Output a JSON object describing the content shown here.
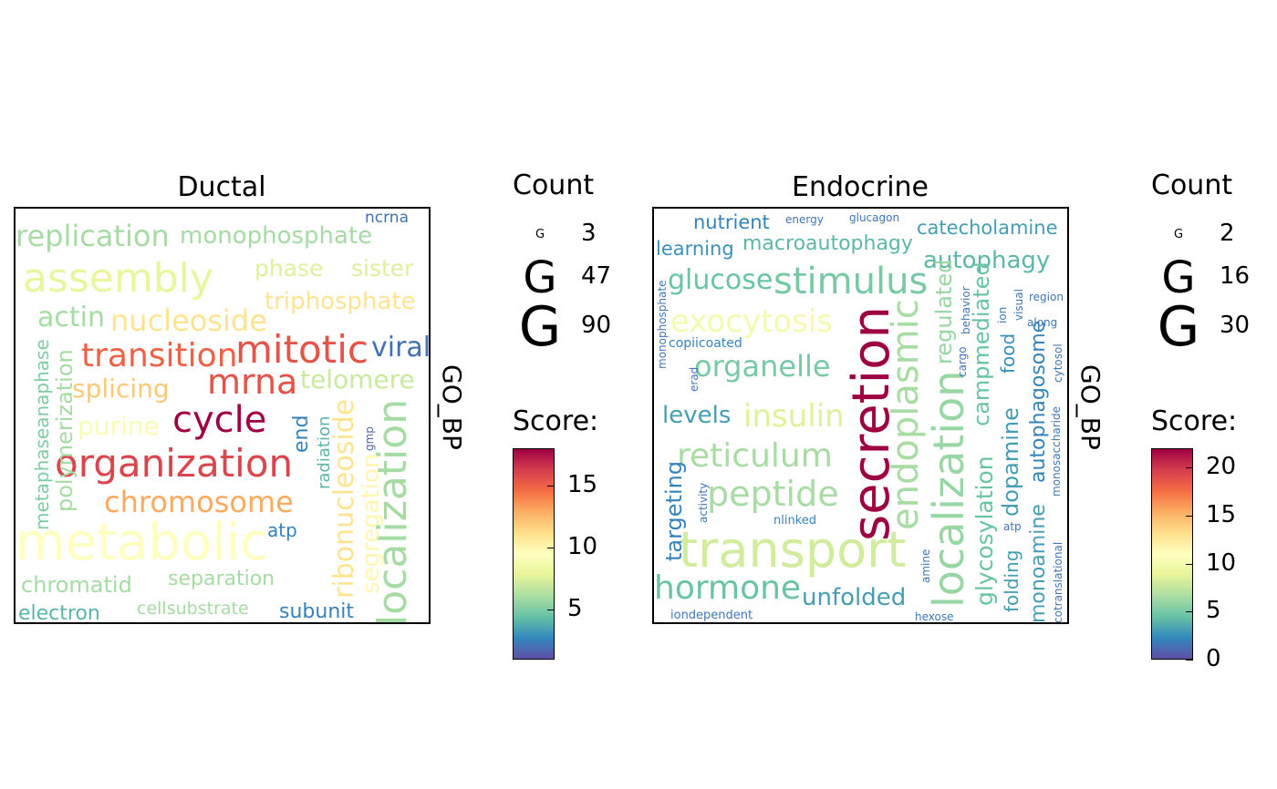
{
  "colors": {
    "palette": "Spectral",
    "stops": [
      "#5e4fa2",
      "#3288bd",
      "#66c2a5",
      "#abdda4",
      "#e6f598",
      "#ffffbf",
      "#fee08b",
      "#fdae61",
      "#f46d43",
      "#d53e4f",
      "#9e0142"
    ]
  },
  "panels": [
    {
      "title": "Ductal",
      "side_label": "GO_BP",
      "count_legend": {
        "title": "Count",
        "glyph": "G",
        "values": [
          3,
          47,
          90
        ]
      },
      "score_legend": {
        "title": "Score:",
        "ticks": [
          5,
          10,
          15
        ],
        "range": [
          1,
          18
        ]
      }
    },
    {
      "title": "Endocrine",
      "side_label": "GO_BP",
      "count_legend": {
        "title": "Count",
        "glyph": "G",
        "values": [
          2,
          16,
          30
        ]
      },
      "score_legend": {
        "title": "Score:",
        "ticks": [
          0,
          5,
          10,
          15,
          20
        ],
        "range": [
          0,
          22
        ]
      }
    }
  ],
  "chart_data": [
    {
      "type": "wordcloud",
      "title": "Ductal",
      "facet_label": "GO_BP",
      "size_legend": {
        "title": "Count",
        "values": [
          3,
          47,
          90
        ]
      },
      "color_legend": {
        "title": "Score:",
        "ticks": [
          5,
          10,
          15
        ],
        "range": [
          1,
          18
        ]
      },
      "words": [
        {
          "word": "metabolic",
          "count": 90,
          "score": 9.5
        },
        {
          "word": "organization",
          "count": 60,
          "score": 16
        },
        {
          "word": "cycle",
          "count": 55,
          "score": 18
        },
        {
          "word": "mitotic",
          "count": 55,
          "score": 15.5
        },
        {
          "word": "assembly",
          "count": 52,
          "score": 8
        },
        {
          "word": "mrna",
          "count": 48,
          "score": 15.5
        },
        {
          "word": "localization",
          "count": 45,
          "score": 6
        },
        {
          "word": "transition",
          "count": 42,
          "score": 15
        },
        {
          "word": "chromosome",
          "count": 40,
          "score": 13
        },
        {
          "word": "replication",
          "count": 36,
          "score": 6
        },
        {
          "word": "nucleoside",
          "count": 35,
          "score": 11
        },
        {
          "word": "viral",
          "count": 33,
          "score": 2
        },
        {
          "word": "ribonucleoside",
          "count": 30,
          "score": 11
        },
        {
          "word": "segregation",
          "count": 28,
          "score": 10
        },
        {
          "word": "monophosphate",
          "count": 30,
          "score": 6
        },
        {
          "word": "actin",
          "count": 30,
          "score": 6
        },
        {
          "word": "telomere",
          "count": 30,
          "score": 7
        },
        {
          "word": "splicing",
          "count": 28,
          "score": 12
        },
        {
          "word": "purine",
          "count": 28,
          "score": 9
        },
        {
          "word": "triphosphate",
          "count": 28,
          "score": 11
        },
        {
          "word": "phase",
          "count": 27,
          "score": 7.5
        },
        {
          "word": "sister",
          "count": 27,
          "score": 7.5
        },
        {
          "word": "chromatid",
          "count": 26,
          "score": 6
        },
        {
          "word": "polymerization",
          "count": 26,
          "score": 6
        },
        {
          "word": "separation",
          "count": 24,
          "score": 6
        },
        {
          "word": "end",
          "count": 24,
          "score": 2.5
        },
        {
          "word": "subunit",
          "count": 24,
          "score": 2.5
        },
        {
          "word": "electron",
          "count": 24,
          "score": 4
        },
        {
          "word": "metaphaseanaphase",
          "count": 22,
          "score": 5
        },
        {
          "word": "atp",
          "count": 22,
          "score": 2.5
        },
        {
          "word": "cellsubstrate",
          "count": 21,
          "score": 6
        },
        {
          "word": "radiation",
          "count": 20,
          "score": 4
        },
        {
          "word": "ribonucleotide",
          "count": 20,
          "score": 2
        },
        {
          "word": "ncrna",
          "count": 18,
          "score": 2
        },
        {
          "word": "spreading",
          "count": 14,
          "score": 1.5
        },
        {
          "word": "gmp",
          "count": 12,
          "score": 1.5
        }
      ]
    },
    {
      "type": "wordcloud",
      "title": "Endocrine",
      "facet_label": "GO_BP",
      "size_legend": {
        "title": "Count",
        "values": [
          2,
          16,
          30
        ]
      },
      "color_legend": {
        "title": "Score:",
        "ticks": [
          0,
          5,
          10,
          15,
          20
        ],
        "range": [
          0,
          22
        ]
      },
      "words": [
        {
          "word": "secretion",
          "count": 30,
          "score": 22
        },
        {
          "word": "transport",
          "count": 28,
          "score": 8
        },
        {
          "word": "localization",
          "count": 24,
          "score": 6
        },
        {
          "word": "endoplasmic",
          "count": 20,
          "score": 6.5
        },
        {
          "word": "stimulus",
          "count": 20,
          "score": 5
        },
        {
          "word": "reticulum",
          "count": 18,
          "score": 6.5
        },
        {
          "word": "peptide",
          "count": 18,
          "score": 6.5
        },
        {
          "word": "hormone",
          "count": 18,
          "score": 4.5
        },
        {
          "word": "exocytosis",
          "count": 17,
          "score": 10
        },
        {
          "word": "insulin",
          "count": 17,
          "score": 8.5
        },
        {
          "word": "organelle",
          "count": 16,
          "score": 5
        },
        {
          "word": "glucose",
          "count": 15,
          "score": 4.5
        },
        {
          "word": "autophagy",
          "count": 13,
          "score": 4
        },
        {
          "word": "glycosylation",
          "count": 13,
          "score": 4.5
        },
        {
          "word": "regulated",
          "count": 12,
          "score": 6
        },
        {
          "word": "campmediated",
          "count": 12,
          "score": 4.5
        },
        {
          "word": "dopamine",
          "count": 12,
          "score": 3
        },
        {
          "word": "unfolded",
          "count": 12,
          "score": 3
        },
        {
          "word": "levels",
          "count": 12,
          "score": 3
        },
        {
          "word": "targeting",
          "count": 12,
          "score": 2
        },
        {
          "word": "monoamine",
          "count": 11,
          "score": 3
        },
        {
          "word": "autophagosome",
          "count": 11,
          "score": 2
        },
        {
          "word": "macroautophagy",
          "count": 11,
          "score": 4
        },
        {
          "word": "catecholamine",
          "count": 11,
          "score": 3
        },
        {
          "word": "folding",
          "count": 11,
          "score": 3
        },
        {
          "word": "food",
          "count": 11,
          "score": 2.5
        },
        {
          "word": "learning",
          "count": 11,
          "score": 2.5
        },
        {
          "word": "nutrient",
          "count": 11,
          "score": 2
        },
        {
          "word": "copiicoated",
          "count": 6,
          "score": 2
        },
        {
          "word": "monophosphate",
          "count": 5,
          "score": 1.5
        },
        {
          "word": "erad",
          "count": 5,
          "score": 1.5
        },
        {
          "word": "activity",
          "count": 5,
          "score": 1.5
        },
        {
          "word": "nlinked",
          "count": 6,
          "score": 2
        },
        {
          "word": "iondependent",
          "count": 6,
          "score": 1.5
        },
        {
          "word": "energy",
          "count": 5,
          "score": 1.5
        },
        {
          "word": "glucagon",
          "count": 5,
          "score": 1.5
        },
        {
          "word": "cargo",
          "count": 5,
          "score": 1.5
        },
        {
          "word": "behavior",
          "count": 5,
          "score": 1.5
        },
        {
          "word": "ion",
          "count": 5,
          "score": 1.5
        },
        {
          "word": "visual",
          "count": 5,
          "score": 1.5
        },
        {
          "word": "region",
          "count": 5,
          "score": 1.5
        },
        {
          "word": "along",
          "count": 5,
          "score": 1.5
        },
        {
          "word": "monosaccharide",
          "count": 5,
          "score": 1.5
        },
        {
          "word": "cytosol",
          "count": 5,
          "score": 1.5
        },
        {
          "word": "atp",
          "count": 5,
          "score": 1.5
        },
        {
          "word": "cotranslational",
          "count": 5,
          "score": 1.5
        },
        {
          "word": "amine",
          "count": 5,
          "score": 1.5
        },
        {
          "word": "hexose",
          "count": 5,
          "score": 1.5
        }
      ]
    }
  ]
}
